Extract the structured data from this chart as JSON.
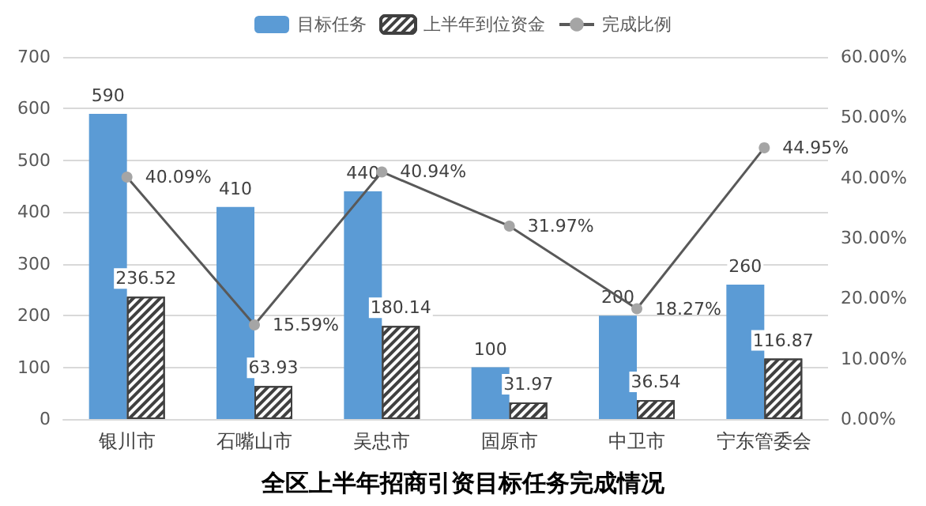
{
  "chart_data": {
    "type": "bar",
    "title": "全区上半年招商引资目标任务完成情况",
    "categories": [
      "银川市",
      "石嘴山市",
      "吴忠市",
      "固原市",
      "中卫市",
      "宁东管委会"
    ],
    "series": [
      {
        "name": "目标任务",
        "color": "#5b9bd5",
        "values": [
          590,
          410,
          440,
          100,
          200,
          260
        ],
        "value_labels": [
          "590",
          "410",
          "440",
          "100",
          "200",
          "260"
        ]
      },
      {
        "name": "上半年到位资金",
        "color": "#404040",
        "values": [
          236.52,
          63.93,
          180.14,
          31.97,
          36.54,
          116.87
        ],
        "value_labels": [
          "236.52",
          "63.93",
          "180.14",
          "31.97",
          "36.54",
          "116.87"
        ]
      },
      {
        "name": "完成比例",
        "type": "line",
        "axis": "y2",
        "color": "#595959",
        "values": [
          40.09,
          15.59,
          40.94,
          31.97,
          18.27,
          44.95
        ],
        "value_labels": [
          "40.09%",
          "15.59%",
          "40.94%",
          "31.97%",
          "18.27%",
          "44.95%"
        ]
      }
    ],
    "ylim": [
      0,
      700
    ],
    "yticks": [
      0,
      100,
      200,
      300,
      400,
      500,
      600,
      700
    ],
    "y2lim": [
      0,
      60
    ],
    "y2ticks": [
      {
        "value": 0,
        "label": "0.00%"
      },
      {
        "value": 10,
        "label": "10.00%"
      },
      {
        "value": 20,
        "label": "20.00%"
      },
      {
        "value": 30,
        "label": "30.00%"
      },
      {
        "value": 40,
        "label": "40.00%"
      },
      {
        "value": 50,
        "label": "50.00%"
      },
      {
        "value": 60,
        "label": "60.00%"
      }
    ],
    "grid": "y",
    "legend": "top",
    "marker": "circle"
  }
}
